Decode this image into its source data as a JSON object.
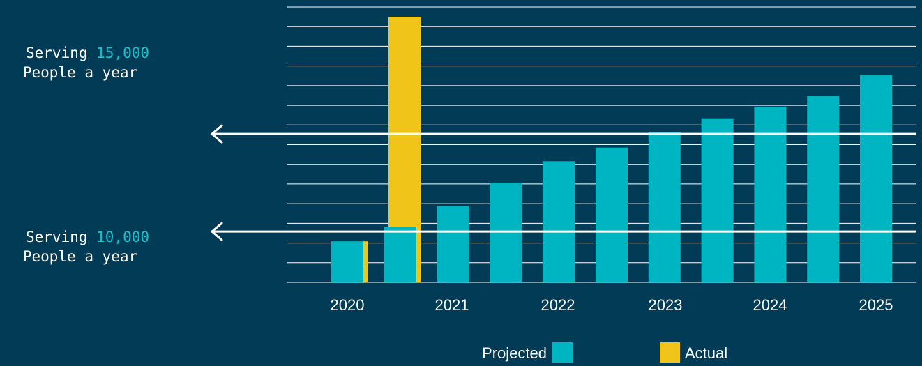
{
  "colors": {
    "background": "#023b55",
    "projected": "#00b5c2",
    "actual": "#f0c419",
    "gridline": "#ffffff",
    "highlight_number": "#19c0cb"
  },
  "callouts": [
    {
      "prefix": "Serving ",
      "number": "15,000",
      "line2": "People a year",
      "value": 15000
    },
    {
      "prefix": "Serving ",
      "number": "10,000",
      "line2": "People a year",
      "value": 10000
    }
  ],
  "chart_data": {
    "type": "bar",
    "grid": true,
    "ylim": [
      7400,
      21500
    ],
    "x_tick_labels": [
      "2020",
      "2021",
      "2022",
      "2023",
      "2024",
      "2025"
    ],
    "series": [
      {
        "name": "Projected",
        "color": "#00b5c2",
        "values": [
          9500,
          10250,
          11300,
          12500,
          13600,
          14300,
          15100,
          15800,
          16400,
          16950,
          18000
        ]
      },
      {
        "name": "Actual",
        "color": "#f0c419",
        "values": [
          9500,
          21000
        ]
      }
    ],
    "legend": {
      "position": "bottom",
      "entries": [
        "Projected",
        "Actual"
      ]
    }
  }
}
